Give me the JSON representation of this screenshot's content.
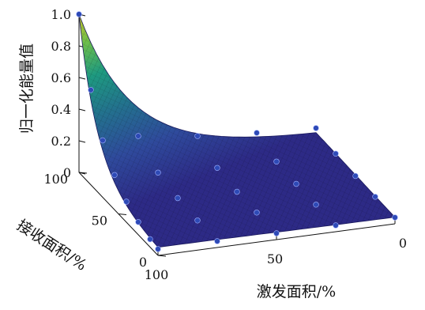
{
  "chart_data": {
    "type": "surface3d",
    "title": "",
    "zlabel": "归一化能量值",
    "ylabel": "接收面积/%",
    "xlabel": "激发面积/%",
    "ztick_labels": [
      "0",
      "0.2",
      "0.4",
      "0.6",
      "0.8",
      "1.0"
    ],
    "zlim": [
      0,
      1
    ],
    "ytick_labels": [
      "0",
      "50",
      "100"
    ],
    "ylim": [
      0,
      100
    ],
    "xtick_labels": [
      "0",
      "50",
      "100"
    ],
    "xlim": [
      0,
      100
    ],
    "grid": false,
    "legend": "none",
    "surface_color_map": [
      "#2d2a86",
      "#2f4a9c",
      "#23718e",
      "#1e9a80",
      "#6fbf4a",
      "#c8c22a"
    ],
    "marker_color": "#2e4ab6",
    "points": [
      {
        "excitation": 100,
        "reception": 100,
        "energy": 1.0
      },
      {
        "excitation": 100,
        "reception": 85,
        "energy": 0.6
      },
      {
        "excitation": 100,
        "reception": 70,
        "energy": 0.36
      },
      {
        "excitation": 100,
        "reception": 55,
        "energy": 0.22
      },
      {
        "excitation": 100,
        "reception": 40,
        "energy": 0.13
      },
      {
        "excitation": 100,
        "reception": 25,
        "energy": 0.08
      },
      {
        "excitation": 100,
        "reception": 10,
        "energy": 0.05
      },
      {
        "excitation": 100,
        "reception": 0,
        "energy": 0.04
      },
      {
        "excitation": 75,
        "reception": 100,
        "energy": 0.18
      },
      {
        "excitation": 75,
        "reception": 75,
        "energy": 0.08
      },
      {
        "excitation": 75,
        "reception": 50,
        "energy": 0.05
      },
      {
        "excitation": 75,
        "reception": 25,
        "energy": 0.04
      },
      {
        "excitation": 75,
        "reception": 0,
        "energy": 0.04
      },
      {
        "excitation": 50,
        "reception": 100,
        "energy": 0.13
      },
      {
        "excitation": 50,
        "reception": 75,
        "energy": 0.06
      },
      {
        "excitation": 50,
        "reception": 50,
        "energy": 0.04
      },
      {
        "excitation": 50,
        "reception": 25,
        "energy": 0.04
      },
      {
        "excitation": 50,
        "reception": 0,
        "energy": 0.04
      },
      {
        "excitation": 25,
        "reception": 100,
        "energy": 0.1
      },
      {
        "excitation": 25,
        "reception": 75,
        "energy": 0.05
      },
      {
        "excitation": 25,
        "reception": 50,
        "energy": 0.04
      },
      {
        "excitation": 25,
        "reception": 25,
        "energy": 0.04
      },
      {
        "excitation": 25,
        "reception": 0,
        "energy": 0.04
      },
      {
        "excitation": 0,
        "reception": 100,
        "energy": 0.08
      },
      {
        "excitation": 0,
        "reception": 75,
        "energy": 0.05
      },
      {
        "excitation": 0,
        "reception": 50,
        "energy": 0.04
      },
      {
        "excitation": 0,
        "reception": 25,
        "energy": 0.04
      },
      {
        "excitation": 0,
        "reception": 0,
        "energy": 0.04
      }
    ]
  }
}
